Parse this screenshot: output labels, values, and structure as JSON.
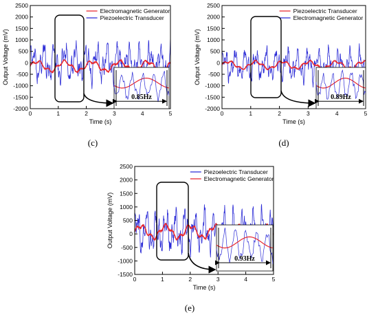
{
  "chart_data": [
    {
      "type": "line",
      "panel_label": "(c)",
      "xlabel": "Time (s)",
      "ylabel": "Output Voltage (mV)",
      "xlim": [
        0,
        5
      ],
      "ylim": [
        -2000,
        2500
      ],
      "x_ticks": [
        "0",
        "1",
        "2",
        "3",
        "4",
        "5"
      ],
      "y_ticks": [
        "-2000",
        "-1500",
        "-1000",
        "-500",
        "0",
        "500",
        "1000",
        "1500",
        "2000",
        "2500"
      ],
      "legend_position": "top-right",
      "annotation": "0.85Hz",
      "series": [
        {
          "name": "Electromagnetic Generator",
          "color": "#e8262d",
          "kind": "em",
          "freq": 0.85,
          "amp": 200,
          "offset": -150
        },
        {
          "name": "Piezoelectric Transducer",
          "color": "#2b2bd6",
          "kind": "pz",
          "freq": 0.85,
          "amp": 900,
          "offset": 0
        }
      ]
    },
    {
      "type": "line",
      "panel_label": "(d)",
      "xlabel": "Time (s)",
      "ylabel": "Output Voltage (mV)",
      "xlim": [
        0,
        5
      ],
      "ylim": [
        -2000,
        2500
      ],
      "x_ticks": [
        "0",
        "1",
        "2",
        "3",
        "4",
        "5"
      ],
      "y_ticks": [
        "-2000",
        "-1500",
        "-1000",
        "-500",
        "0",
        "500",
        "1000",
        "1500",
        "2000",
        "2500"
      ],
      "legend_position": "top-right",
      "annotation": "0.89Hz",
      "series": [
        {
          "name": "Piezoelectric Transducer",
          "color": "#e8262d",
          "kind": "em",
          "freq": 0.89,
          "amp": 150,
          "offset": -100
        },
        {
          "name": "Electromagnetic Generator",
          "color": "#2b2bd6",
          "kind": "pz",
          "freq": 0.89,
          "amp": 750,
          "offset": -100
        }
      ]
    },
    {
      "type": "line",
      "panel_label": "(e)",
      "xlabel": "Time (s)",
      "ylabel": "Output Voltage (mV)",
      "xlim": [
        0,
        5
      ],
      "ylim": [
        -1500,
        2500
      ],
      "x_ticks": [
        "0",
        "1",
        "2",
        "3",
        "4",
        "5"
      ],
      "y_ticks": [
        "-1500",
        "-1000",
        "-500",
        "0",
        "500",
        "1000",
        "1500",
        "2000",
        "2500"
      ],
      "legend_position": "top-right",
      "annotation": "0.93Hz",
      "series": [
        {
          "name": "Piezoelectric Transducer",
          "color": "#2b2bd6",
          "kind": "pz",
          "freq": 0.93,
          "amp": 850,
          "offset": 100
        },
        {
          "name": "Electromagnetic Generator",
          "color": "#e8262d",
          "kind": "em",
          "freq": 0.93,
          "amp": 220,
          "offset": 80
        }
      ]
    }
  ]
}
